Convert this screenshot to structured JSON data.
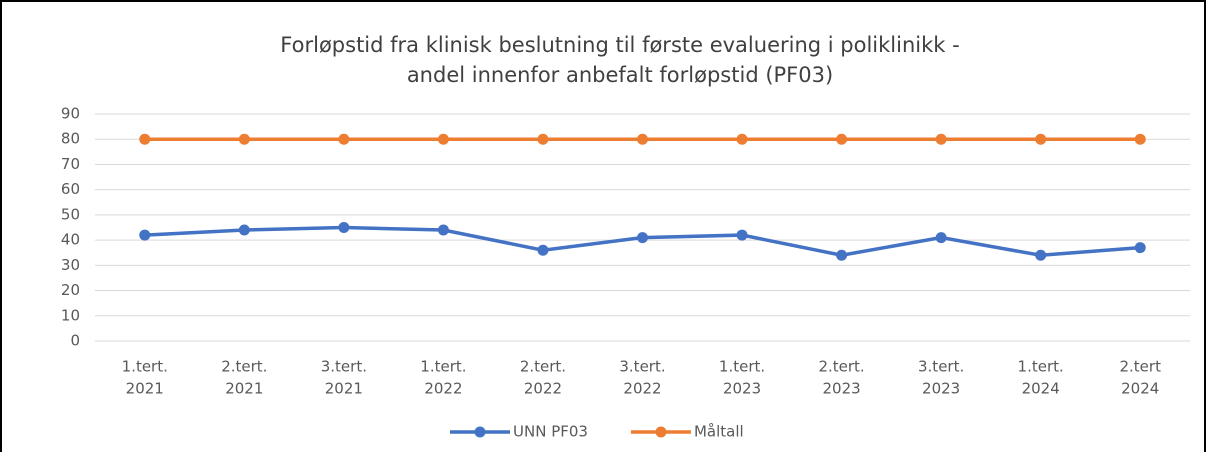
{
  "chart_data": {
    "type": "line",
    "title": [
      "Forløpstid fra klinisk beslutning til første evaluering i poliklinikk  -",
      "andel innenfor anbefalt forløpstid (PF03)"
    ],
    "categories": [
      [
        "1.tert.",
        "2021"
      ],
      [
        "2.tert.",
        "2021"
      ],
      [
        "3.tert.",
        "2021"
      ],
      [
        "1.tert.",
        "2022"
      ],
      [
        "2.tert.",
        "2022"
      ],
      [
        "3.tert.",
        "2022"
      ],
      [
        "1.tert.",
        "2023"
      ],
      [
        "2.tert.",
        "2023"
      ],
      [
        "3.tert.",
        "2023"
      ],
      [
        "1.tert.",
        "2024"
      ],
      [
        "2.tert",
        "2024"
      ]
    ],
    "series": [
      {
        "name": "UNN PF03",
        "color": "#4472c4",
        "values": [
          42,
          44,
          45,
          44,
          36,
          41,
          42,
          34,
          41,
          34,
          37
        ]
      },
      {
        "name": "Måltall",
        "color": "#ed7d31",
        "values": [
          80,
          80,
          80,
          80,
          80,
          80,
          80,
          80,
          80,
          80,
          80
        ]
      }
    ],
    "ylim": [
      0,
      90
    ],
    "yticks": [
      0,
      10,
      20,
      30,
      40,
      50,
      60,
      70,
      80,
      90
    ],
    "grid": true,
    "legend": "bottom"
  }
}
